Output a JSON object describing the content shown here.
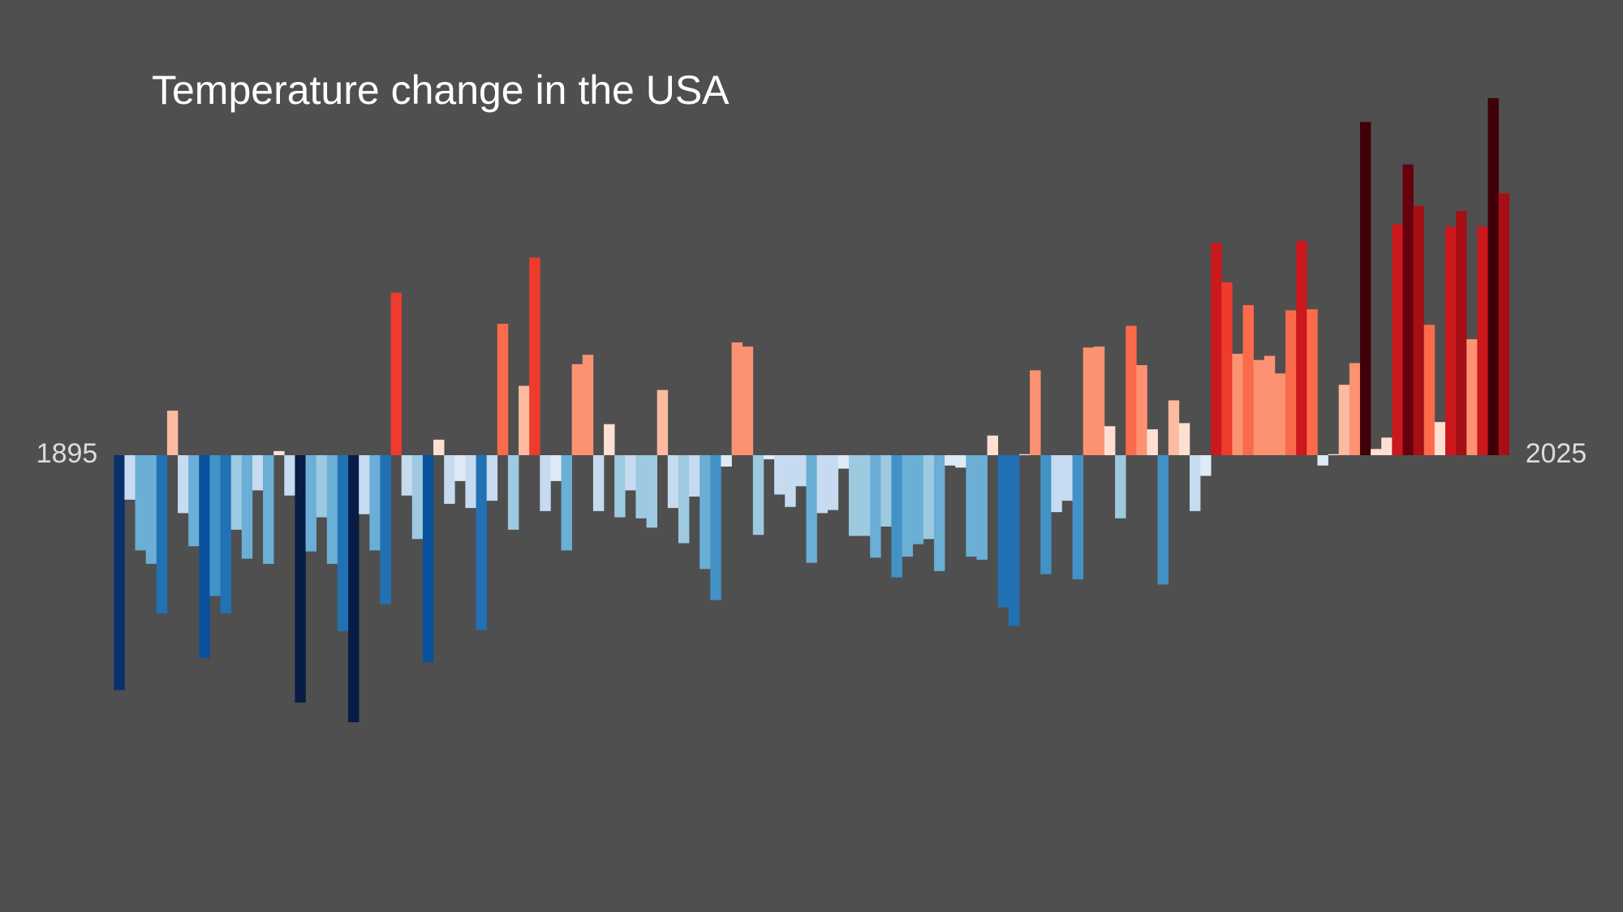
{
  "chart_data": {
    "type": "bar",
    "title": "Temperature change in the USA",
    "categories": [
      "1895",
      null,
      null,
      null,
      null,
      null,
      null,
      null,
      null,
      null,
      null,
      null,
      null,
      null,
      null,
      null,
      null,
      null,
      null,
      null,
      null,
      null,
      null,
      null,
      null,
      null,
      null,
      null,
      null,
      null,
      null,
      null,
      null,
      null,
      null,
      null,
      null,
      null,
      null,
      null,
      null,
      null,
      null,
      null,
      null,
      null,
      null,
      null,
      null,
      null,
      null,
      null,
      null,
      null,
      null,
      null,
      null,
      null,
      null,
      null,
      null,
      null,
      null,
      null,
      null,
      null,
      null,
      null,
      null,
      null,
      null,
      null,
      null,
      null,
      null,
      null,
      null,
      null,
      null,
      null,
      null,
      null,
      null,
      null,
      null,
      null,
      null,
      null,
      null,
      null,
      null,
      null,
      null,
      null,
      null,
      null,
      null,
      null,
      null,
      null,
      null,
      null,
      null,
      null,
      null,
      null,
      null,
      null,
      null,
      null,
      null,
      null,
      null,
      null,
      null,
      null,
      null,
      null,
      null,
      null,
      null,
      null,
      null,
      null,
      null,
      null,
      null,
      null,
      null,
      null,
      "2025"
    ],
    "values": [
      -2.27,
      -0.43,
      -0.92,
      -1.05,
      -1.53,
      0.43,
      -0.56,
      -0.88,
      -1.96,
      -1.36,
      -1.53,
      -0.72,
      -1.0,
      -0.34,
      -1.05,
      0.04,
      -0.39,
      -2.39,
      -0.93,
      -0.6,
      -1.05,
      -1.7,
      -2.58,
      -0.57,
      -0.92,
      -1.44,
      1.57,
      -0.39,
      -0.81,
      -2.0,
      0.15,
      -0.47,
      -0.25,
      -0.51,
      -1.69,
      -0.44,
      1.27,
      -0.72,
      0.67,
      1.91,
      -0.54,
      -0.25,
      -0.92,
      0.88,
      0.97,
      -0.54,
      0.3,
      -0.6,
      -0.34,
      -0.61,
      -0.7,
      0.63,
      -0.51,
      -0.85,
      -0.4,
      -1.1,
      -1.4,
      -0.11,
      1.09,
      1.05,
      -0.77,
      -0.04,
      -0.38,
      -0.5,
      -0.3,
      -1.04,
      -0.56,
      -0.53,
      -0.13,
      -0.78,
      -0.78,
      -0.99,
      -0.69,
      -1.18,
      -0.98,
      -0.86,
      -0.81,
      -1.12,
      -0.1,
      -0.12,
      -0.98,
      -1.01,
      0.19,
      -1.47,
      -1.65,
      0.01,
      0.82,
      -1.15,
      -0.55,
      -0.44,
      -1.2,
      1.04,
      1.05,
      0.28,
      -0.61,
      1.25,
      0.87,
      0.25,
      -1.25,
      0.53,
      0.31,
      -0.54,
      -0.2,
      2.05,
      1.67,
      0.98,
      1.45,
      0.92,
      0.96,
      0.79,
      1.4,
      2.07,
      1.41,
      -0.1,
      0.01,
      0.68,
      0.89,
      3.22,
      0.06,
      0.17,
      2.23,
      2.81,
      2.41,
      1.26,
      0.32,
      2.21,
      2.36,
      1.12,
      2.21,
      3.45,
      2.53
    ],
    "negative_colors": [
      "#deebf7",
      "#c6dbef",
      "#9ecae1",
      "#6baed6",
      "#4292c6",
      "#2171b5",
      "#08519c",
      "#08306b",
      "#081d45"
    ],
    "positive_colors": [
      "#fee0d2",
      "#fcbba1",
      "#fc9272",
      "#fb6a4a",
      "#ef3b2c",
      "#cb181d",
      "#a50f15",
      "#67000d",
      "#3f0008"
    ]
  }
}
